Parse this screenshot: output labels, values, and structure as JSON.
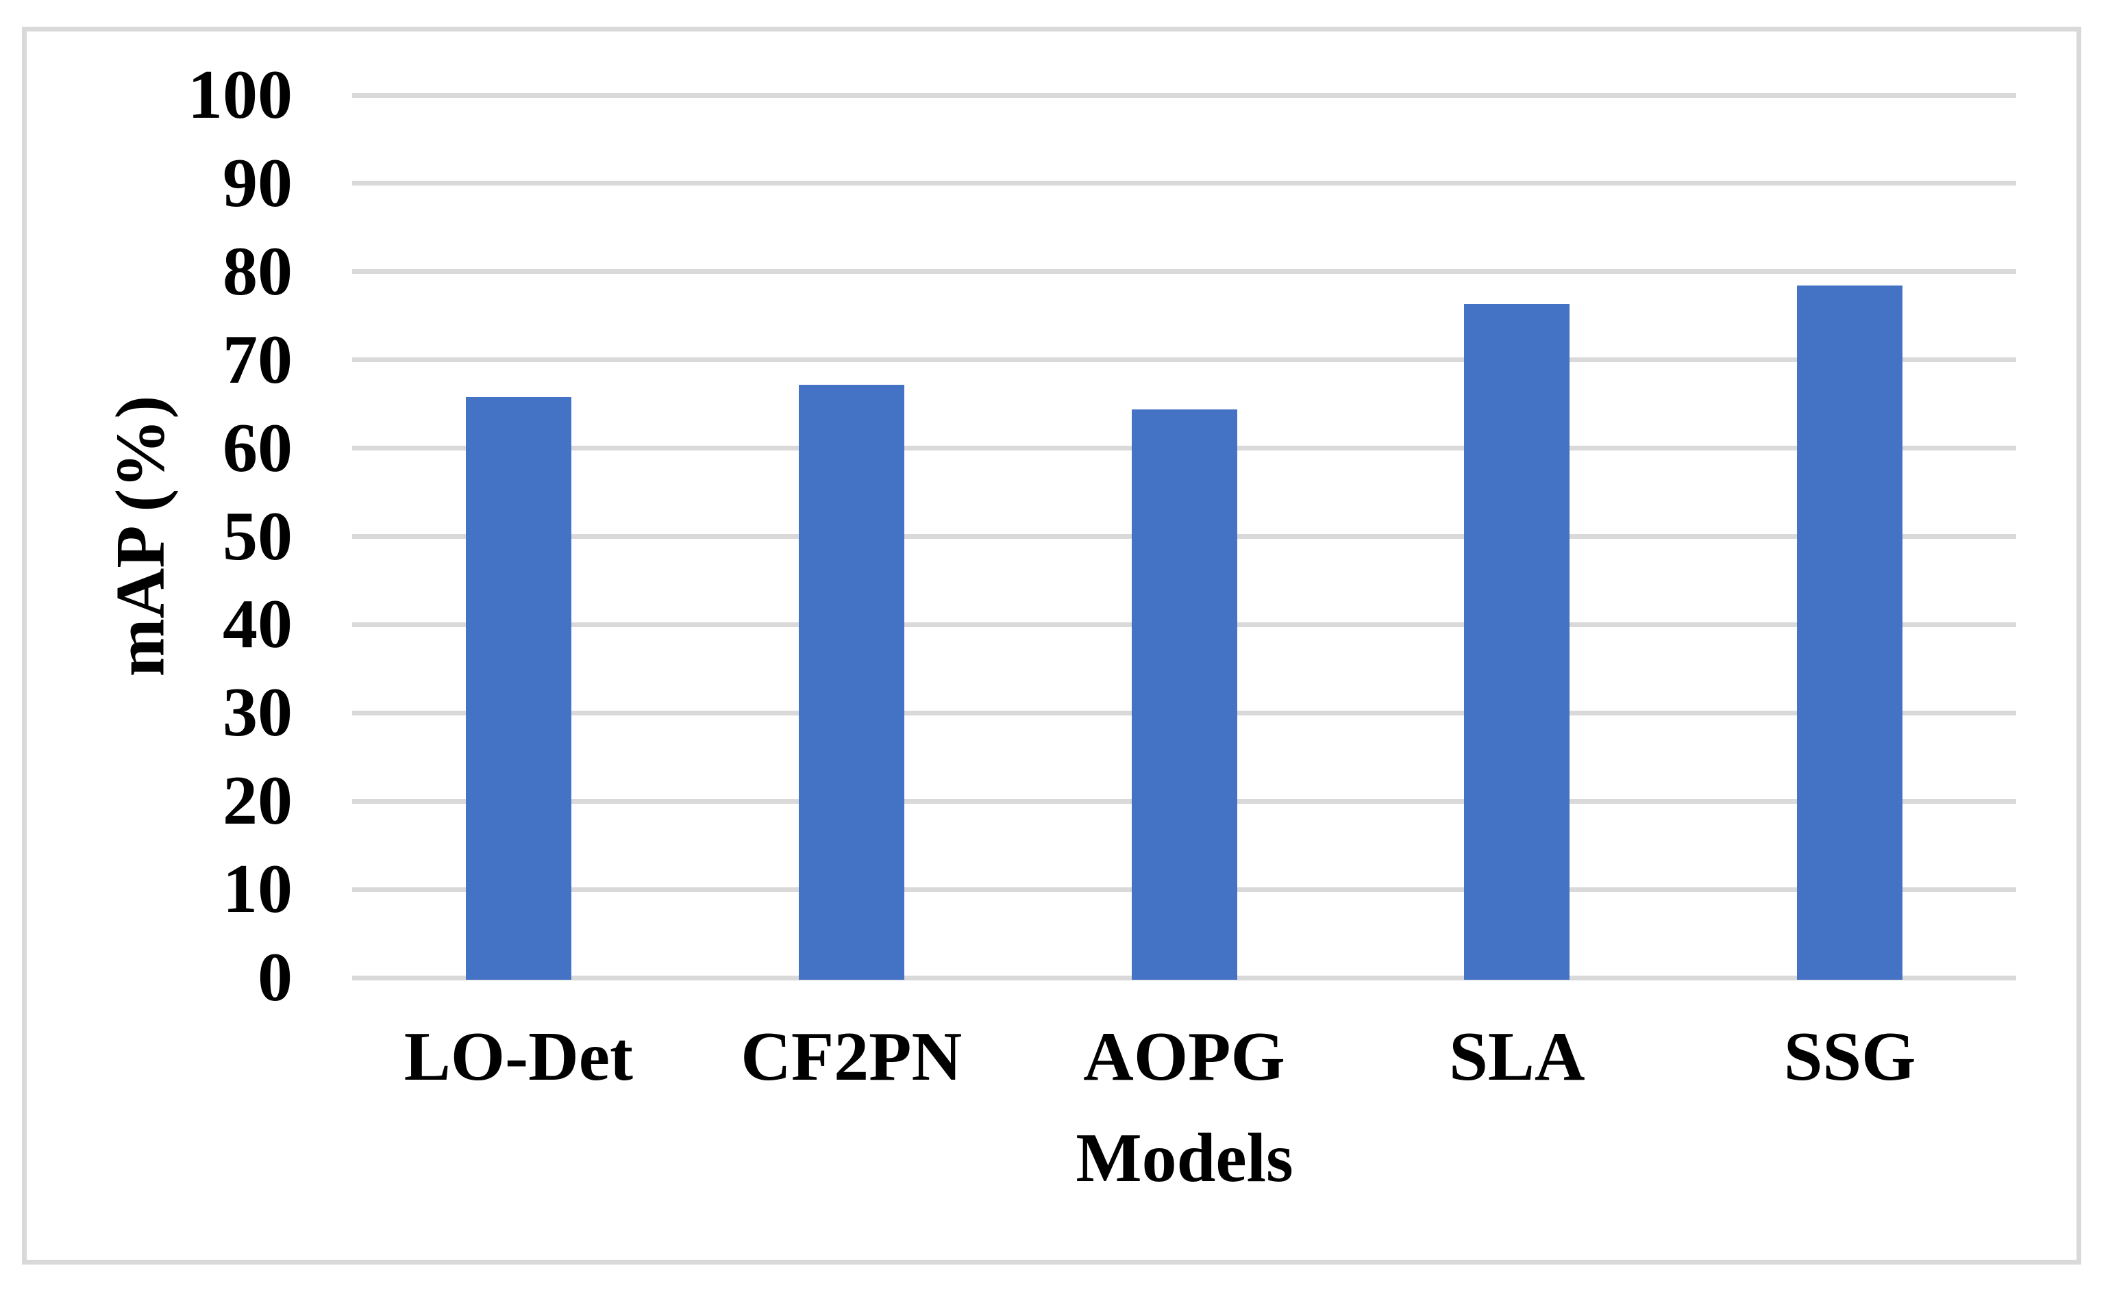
{
  "chart": {
    "background_color": "#FFFFFF",
    "frame_color": "#D9D9D9",
    "text_color": "#000000"
  },
  "chart_data": {
    "type": "bar",
    "title": "",
    "categories": [
      "LO-Det",
      "CF2PN",
      "AOPG",
      "SLA",
      "SSG"
    ],
    "values": [
      65.8,
      67.2,
      64.4,
      76.3,
      78.4
    ],
    "xlabel": "Models",
    "ylabel": "mAP (%)",
    "ylim": [
      0,
      100
    ],
    "yticks": [
      0,
      10,
      20,
      30,
      40,
      50,
      60,
      70,
      80,
      90,
      100
    ],
    "grid": "horizontal",
    "legend_position": "none",
    "bar_color": "#4472C4",
    "gridline_color": "#D9D9D9",
    "axis_line_color": "#D9D9D9"
  }
}
